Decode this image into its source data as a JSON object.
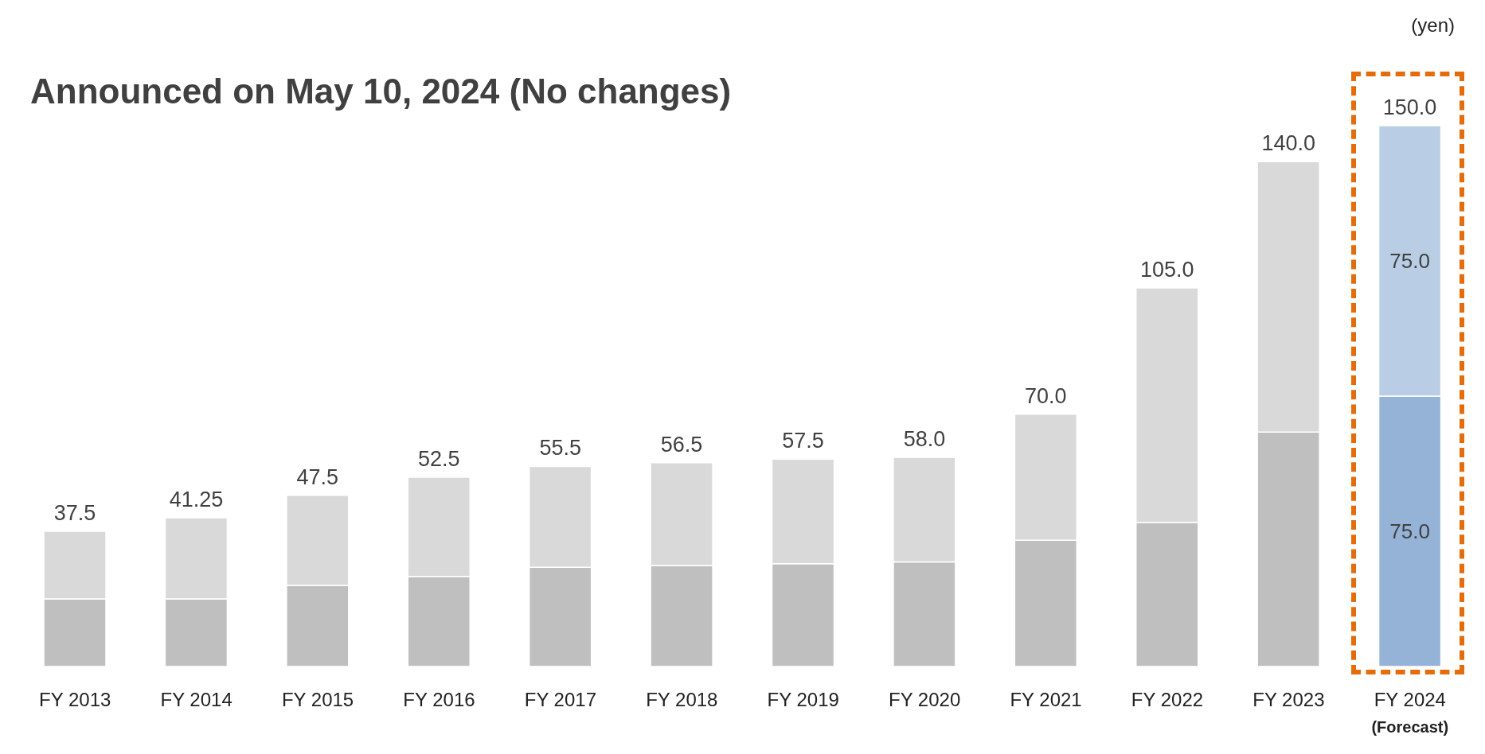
{
  "chart_data": {
    "type": "bar",
    "title": "Announced on May 10, 2024 (No changes)",
    "categories": [
      "FY 2013",
      "FY 2014",
      "FY 2015",
      "FY 2016",
      "FY 2017",
      "FY 2018",
      "FY 2019",
      "FY 2020",
      "FY 2021",
      "FY 2022",
      "FY 2023",
      "FY 2024"
    ],
    "stacked": true,
    "series": [
      {
        "colors": [
          "#bfbfbf",
          "#bfbfbf",
          "#bfbfbf",
          "#bfbfbf",
          "#bfbfbf",
          "#bfbfbf",
          "#bfbfbf",
          "#bfbfbf",
          "#bfbfbf",
          "#bfbfbf",
          "#bfbfbf",
          "#95b3d7"
        ],
        "values": [
          18.75,
          18.75,
          22.5,
          25,
          27.5,
          28,
          28.5,
          29,
          35,
          40,
          65,
          75
        ],
        "value_labels": [
          null,
          null,
          null,
          null,
          null,
          null,
          null,
          null,
          null,
          null,
          null,
          "75.0"
        ]
      },
      {
        "colors": [
          "#d9d9d9",
          "#d9d9d9",
          "#d9d9d9",
          "#d9d9d9",
          "#d9d9d9",
          "#d9d9d9",
          "#d9d9d9",
          "#d9d9d9",
          "#d9d9d9",
          "#d9d9d9",
          "#d9d9d9",
          "#b9cde5"
        ],
        "values": [
          18.75,
          22.5,
          25,
          27.5,
          28,
          28.5,
          29,
          29,
          35,
          65,
          75,
          75
        ],
        "value_labels": [
          null,
          null,
          null,
          null,
          null,
          null,
          null,
          null,
          null,
          null,
          null,
          "75.0"
        ]
      }
    ],
    "totals": [
      "37.5",
      "41.25",
      "47.5",
      "52.5",
      "55.5",
      "56.5",
      "57.5",
      "58.0",
      "70.0",
      "105.0",
      "140.0",
      "150.0"
    ],
    "annotations": [
      "(yen)",
      "(Forecast)"
    ],
    "legend": false,
    "grid": false
  }
}
